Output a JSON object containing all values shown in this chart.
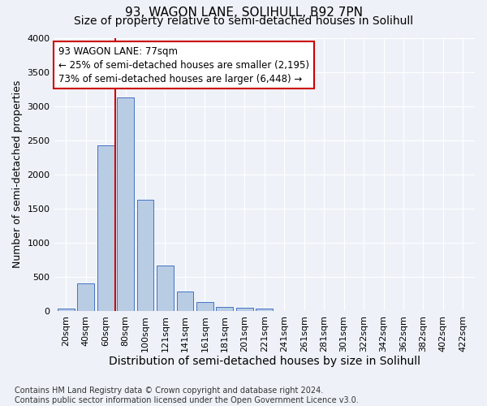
{
  "title": "93, WAGON LANE, SOLIHULL, B92 7PN",
  "subtitle": "Size of property relative to semi-detached houses in Solihull",
  "xlabel": "Distribution of semi-detached houses by size in Solihull",
  "ylabel": "Number of semi-detached properties",
  "footnote": "Contains HM Land Registry data © Crown copyright and database right 2024.\nContains public sector information licensed under the Open Government Licence v3.0.",
  "bar_labels": [
    "20sqm",
    "40sqm",
    "60sqm",
    "80sqm",
    "100sqm",
    "121sqm",
    "141sqm",
    "161sqm",
    "181sqm",
    "201sqm",
    "221sqm",
    "241sqm",
    "261sqm",
    "281sqm",
    "301sqm",
    "322sqm",
    "342sqm",
    "362sqm",
    "382sqm",
    "402sqm",
    "422sqm"
  ],
  "bar_values": [
    30,
    400,
    2420,
    3130,
    1630,
    670,
    290,
    130,
    60,
    50,
    40,
    0,
    0,
    0,
    0,
    0,
    0,
    0,
    0,
    0,
    0
  ],
  "bar_color": "#b8cce4",
  "bar_edge_color": "#4472c4",
  "property_sqm": 77,
  "annotation_text_line1": "93 WAGON LANE: 77sqm",
  "annotation_text_line2": "← 25% of semi-detached houses are smaller (2,195)",
  "annotation_text_line3": "73% of semi-detached houses are larger (6,448) →",
  "annotation_box_color": "#ffffff",
  "annotation_box_edge_color": "#cc0000",
  "vline_color": "#cc0000",
  "ylim": [
    0,
    4000
  ],
  "yticks": [
    0,
    500,
    1000,
    1500,
    2000,
    2500,
    3000,
    3500,
    4000
  ],
  "background_color": "#eef2f8",
  "grid_color": "#ffffff",
  "title_fontsize": 11,
  "subtitle_fontsize": 10,
  "xlabel_fontsize": 10,
  "ylabel_fontsize": 9,
  "tick_fontsize": 8,
  "annotation_fontsize": 8.5,
  "footnote_fontsize": 7
}
